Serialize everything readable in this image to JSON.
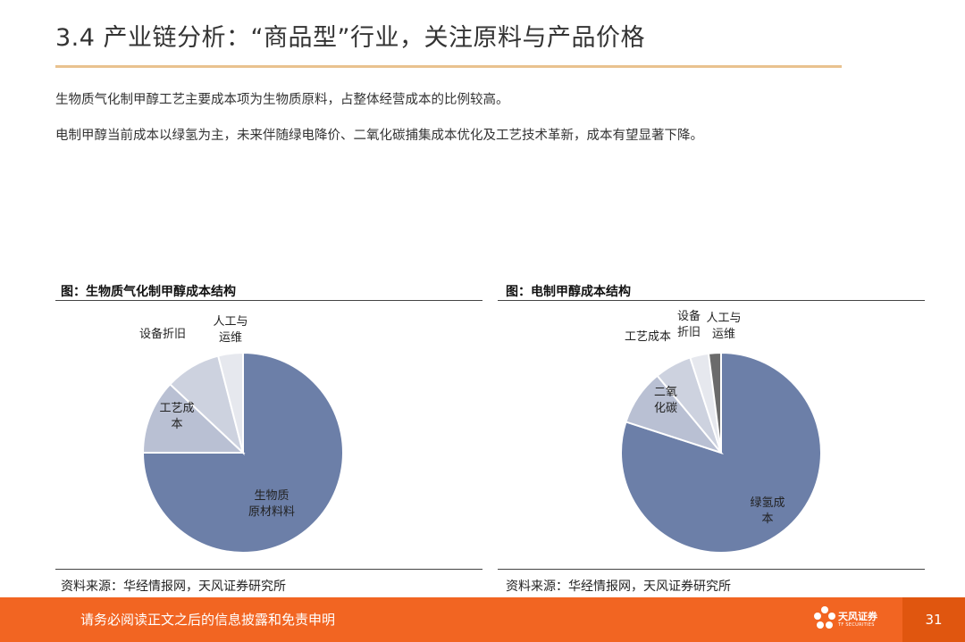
{
  "slide": {
    "title": "3.4 产业链分析：“商品型”行业，关注原料与产品价格",
    "paragraphs": [
      "生物质气化制甲醇工艺主要成本项为生物质原料，占整体经营成本的比例较高。",
      "电制甲醇当前成本以绿氢为主，未来伴随绿电降价、二氧化碳捕集成本优化及工艺技术革新，成本有望显著下降。"
    ]
  },
  "figures": [
    {
      "title": "图：生物质气化制甲醇成本结构",
      "source": "资料来源：华经情报网，天风证券研究所"
    },
    {
      "title": "图：电制甲醇成本结构",
      "source": "资料来源：华经情报网，天风证券研究所"
    }
  ],
  "chart_data": [
    {
      "type": "pie",
      "title": "图：生物质气化制甲醇成本结构",
      "slices": [
        {
          "label": "生物质原材料",
          "value": 75,
          "color": "#6c7fa8"
        },
        {
          "label": "工艺成本",
          "value": 12,
          "color": "#b9c0d3"
        },
        {
          "label": "设备折旧",
          "value": 9,
          "color": "#cdd2df"
        },
        {
          "label": "人工与运维",
          "value": 4,
          "color": "#e6e8ee"
        }
      ]
    },
    {
      "type": "pie",
      "title": "图：电制甲醇成本结构",
      "slices": [
        {
          "label": "绿氢成本",
          "value": 80,
          "color": "#6c7fa8"
        },
        {
          "label": "二氧化碳",
          "value": 9,
          "color": "#b9c0d3"
        },
        {
          "label": "工艺成本",
          "value": 6,
          "color": "#cdd2df"
        },
        {
          "label": "设备折旧",
          "value": 3,
          "color": "#e6e8ee"
        },
        {
          "label": "人工与运维",
          "value": 2,
          "color": "#6b6b6b"
        }
      ]
    }
  ],
  "pie_labels": {
    "left": {
      "main": [
        "生物质",
        "原材料料"
      ],
      "process": [
        "工艺成",
        "本"
      ],
      "depreciation": [
        "设备折旧"
      ],
      "labor": [
        "人工与",
        "运维"
      ]
    },
    "right": {
      "main": [
        "绿氢成",
        "本"
      ],
      "co2": [
        "二氧",
        "化碳"
      ],
      "process": [
        "工艺成本"
      ],
      "depreciation": [
        "设备",
        "折旧"
      ],
      "labor": [
        "人工与",
        "运维"
      ]
    }
  },
  "footer": {
    "disclaimer": "请务必阅读正文之后的信息披露和免责申明",
    "logo_name": "天风证券",
    "logo_sub": "TF SECURITIES",
    "page_number": "31"
  },
  "colors": {
    "accent": "#f26522",
    "title_rule": "#e9c28f"
  }
}
